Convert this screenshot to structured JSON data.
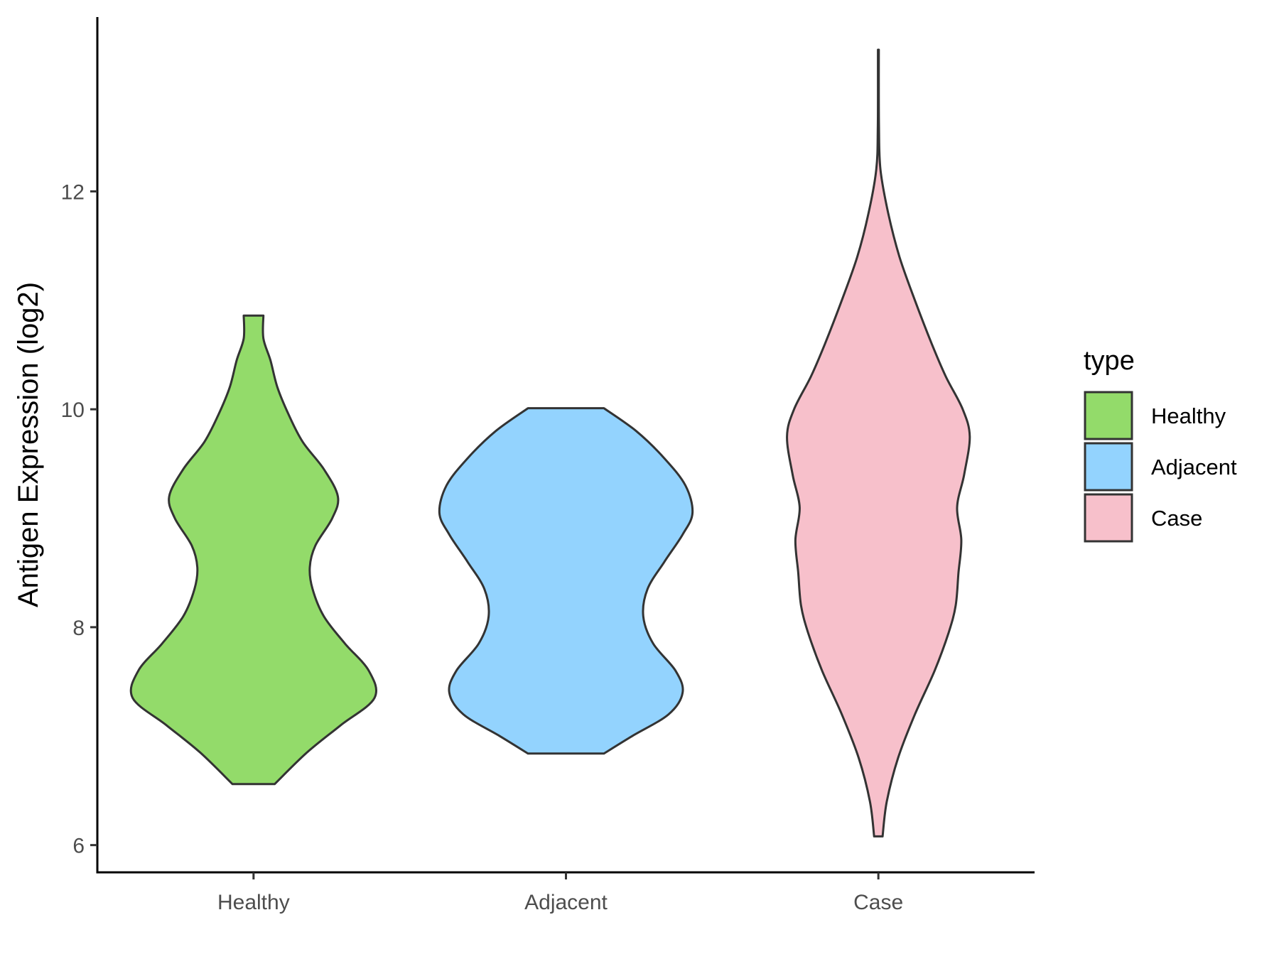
{
  "chart_data": {
    "type": "violin",
    "ylabel": "Antigen Expression (log2)",
    "xlabel": "",
    "ylim": [
      5.75,
      13.6
    ],
    "y_ticks": [
      6,
      8,
      10,
      12
    ],
    "y_tick_labels": [
      "6",
      "8",
      "10",
      "12"
    ],
    "categories": [
      "Healthy",
      "Adjacent",
      "Case"
    ],
    "grid": false,
    "legend": {
      "title": "type",
      "position": "right",
      "entries": [
        {
          "label": "Healthy",
          "color": "#93DB6A"
        },
        {
          "label": "Adjacent",
          "color": "#93D3FE"
        },
        {
          "label": "Case",
          "color": "#F7C0CB"
        }
      ]
    },
    "series": [
      {
        "name": "Healthy",
        "color": "#93DB6A",
        "min": 6.56,
        "max": 10.86,
        "density": [
          [
            6.56,
            0.15
          ],
          [
            6.85,
            0.38
          ],
          [
            7.1,
            0.62
          ],
          [
            7.35,
            0.86
          ],
          [
            7.6,
            0.82
          ],
          [
            7.85,
            0.65
          ],
          [
            8.1,
            0.5
          ],
          [
            8.35,
            0.42
          ],
          [
            8.55,
            0.4
          ],
          [
            8.75,
            0.44
          ],
          [
            9.0,
            0.56
          ],
          [
            9.2,
            0.6
          ],
          [
            9.45,
            0.5
          ],
          [
            9.7,
            0.35
          ],
          [
            9.95,
            0.25
          ],
          [
            10.2,
            0.17
          ],
          [
            10.45,
            0.12
          ],
          [
            10.65,
            0.07
          ],
          [
            10.86,
            0.07
          ]
        ]
      },
      {
        "name": "Adjacent",
        "color": "#93D3FE",
        "min": 6.84,
        "max": 10.01,
        "density": [
          [
            6.84,
            0.27
          ],
          [
            7.0,
            0.47
          ],
          [
            7.2,
            0.73
          ],
          [
            7.4,
            0.83
          ],
          [
            7.6,
            0.78
          ],
          [
            7.85,
            0.62
          ],
          [
            8.1,
            0.55
          ],
          [
            8.35,
            0.58
          ],
          [
            8.6,
            0.7
          ],
          [
            8.85,
            0.83
          ],
          [
            9.05,
            0.9
          ],
          [
            9.3,
            0.85
          ],
          [
            9.55,
            0.7
          ],
          [
            9.8,
            0.5
          ],
          [
            10.01,
            0.27
          ]
        ]
      },
      {
        "name": "Case",
        "color": "#F7C0CB",
        "min": 6.08,
        "max": 13.3,
        "density": [
          [
            6.08,
            0.03
          ],
          [
            6.4,
            0.06
          ],
          [
            6.8,
            0.14
          ],
          [
            7.2,
            0.26
          ],
          [
            7.6,
            0.4
          ],
          [
            7.95,
            0.5
          ],
          [
            8.2,
            0.55
          ],
          [
            8.5,
            0.57
          ],
          [
            8.8,
            0.59
          ],
          [
            9.1,
            0.56
          ],
          [
            9.4,
            0.61
          ],
          [
            9.75,
            0.65
          ],
          [
            10.0,
            0.6
          ],
          [
            10.3,
            0.48
          ],
          [
            10.6,
            0.38
          ],
          [
            11.0,
            0.26
          ],
          [
            11.4,
            0.15
          ],
          [
            11.8,
            0.07
          ],
          [
            12.2,
            0.015
          ],
          [
            12.6,
            0.004
          ],
          [
            13.3,
            0.003
          ]
        ]
      }
    ]
  }
}
